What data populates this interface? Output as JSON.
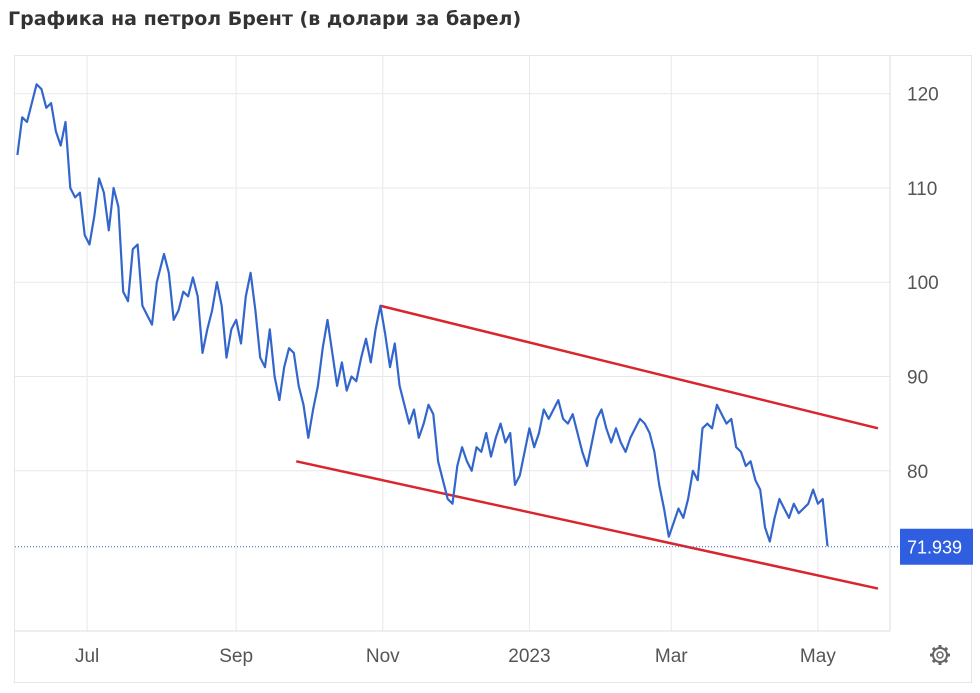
{
  "title": "Графика на петрол Брент (в долари за барел)",
  "colors": {
    "line": "#3366cc",
    "channel": "#d9262e",
    "price_badge": "#2f5fe0",
    "grid": "#e8e8e8",
    "dotted": "#3366cc"
  },
  "icons": {
    "settings": "gear-icon"
  },
  "chart_data": {
    "type": "line",
    "title": "Графика на петрол Брент (в долари за барел)",
    "xlabel": "",
    "ylabel": "",
    "ylim": [
      63,
      124
    ],
    "x_tick_labels": [
      "Jul",
      "Sep",
      "Nov",
      "2023",
      "Mar",
      "May"
    ],
    "x_ticks": [
      "2022-07-01",
      "2022-09-01",
      "2022-11-01",
      "2023-01-01",
      "2023-03-01",
      "2023-05-01"
    ],
    "y_ticks": [
      80,
      90,
      100,
      110,
      120
    ],
    "grid": true,
    "current_price": 71.939,
    "current_price_label": "71.939",
    "series": [
      {
        "values": [
          [
            "2022-06-02",
            113.5
          ],
          [
            "2022-06-04",
            117.5
          ],
          [
            "2022-06-06",
            117.0
          ],
          [
            "2022-06-08",
            119.0
          ],
          [
            "2022-06-10",
            121.0
          ],
          [
            "2022-06-12",
            120.5
          ],
          [
            "2022-06-14",
            118.5
          ],
          [
            "2022-06-16",
            119.0
          ],
          [
            "2022-06-18",
            116.0
          ],
          [
            "2022-06-20",
            114.5
          ],
          [
            "2022-06-22",
            117.0
          ],
          [
            "2022-06-24",
            110.0
          ],
          [
            "2022-06-26",
            109.0
          ],
          [
            "2022-06-28",
            109.5
          ],
          [
            "2022-06-30",
            105.0
          ],
          [
            "2022-07-02",
            104.0
          ],
          [
            "2022-07-04",
            107.0
          ],
          [
            "2022-07-06",
            111.0
          ],
          [
            "2022-07-08",
            109.5
          ],
          [
            "2022-07-10",
            105.5
          ],
          [
            "2022-07-12",
            110.0
          ],
          [
            "2022-07-14",
            108.0
          ],
          [
            "2022-07-16",
            99.0
          ],
          [
            "2022-07-18",
            98.0
          ],
          [
            "2022-07-20",
            103.5
          ],
          [
            "2022-07-22",
            104.0
          ],
          [
            "2022-07-24",
            97.5
          ],
          [
            "2022-07-26",
            96.5
          ],
          [
            "2022-07-28",
            95.5
          ],
          [
            "2022-07-30",
            100.0
          ],
          [
            "2022-08-02",
            103.0
          ],
          [
            "2022-08-04",
            101.0
          ],
          [
            "2022-08-06",
            96.0
          ],
          [
            "2022-08-08",
            97.0
          ],
          [
            "2022-08-10",
            99.0
          ],
          [
            "2022-08-12",
            98.5
          ],
          [
            "2022-08-14",
            100.5
          ],
          [
            "2022-08-16",
            98.5
          ],
          [
            "2022-08-18",
            92.5
          ],
          [
            "2022-08-20",
            95.0
          ],
          [
            "2022-08-22",
            97.0
          ],
          [
            "2022-08-24",
            100.0
          ],
          [
            "2022-08-26",
            97.5
          ],
          [
            "2022-08-28",
            92.0
          ],
          [
            "2022-08-30",
            95.0
          ],
          [
            "2022-09-01",
            96.0
          ],
          [
            "2022-09-03",
            93.5
          ],
          [
            "2022-09-05",
            98.5
          ],
          [
            "2022-09-07",
            101.0
          ],
          [
            "2022-09-09",
            97.0
          ],
          [
            "2022-09-11",
            92.0
          ],
          [
            "2022-09-13",
            91.0
          ],
          [
            "2022-09-15",
            95.0
          ],
          [
            "2022-09-17",
            90.0
          ],
          [
            "2022-09-19",
            87.5
          ],
          [
            "2022-09-21",
            91.0
          ],
          [
            "2022-09-23",
            93.0
          ],
          [
            "2022-09-25",
            92.5
          ],
          [
            "2022-09-27",
            89.0
          ],
          [
            "2022-09-29",
            87.0
          ],
          [
            "2022-10-01",
            83.5
          ],
          [
            "2022-10-03",
            86.5
          ],
          [
            "2022-10-05",
            89.0
          ],
          [
            "2022-10-07",
            93.0
          ],
          [
            "2022-10-09",
            96.0
          ],
          [
            "2022-10-11",
            92.5
          ],
          [
            "2022-10-13",
            89.0
          ],
          [
            "2022-10-15",
            91.5
          ],
          [
            "2022-10-17",
            88.5
          ],
          [
            "2022-10-19",
            90.0
          ],
          [
            "2022-10-21",
            89.5
          ],
          [
            "2022-10-23",
            92.0
          ],
          [
            "2022-10-25",
            94.0
          ],
          [
            "2022-10-27",
            91.5
          ],
          [
            "2022-10-29",
            95.0
          ],
          [
            "2022-10-31",
            97.5
          ],
          [
            "2022-11-02",
            94.5
          ],
          [
            "2022-11-04",
            91.0
          ],
          [
            "2022-11-06",
            93.5
          ],
          [
            "2022-11-08",
            89.0
          ],
          [
            "2022-11-10",
            87.0
          ],
          [
            "2022-11-12",
            85.0
          ],
          [
            "2022-11-14",
            86.5
          ],
          [
            "2022-11-16",
            83.5
          ],
          [
            "2022-11-18",
            85.0
          ],
          [
            "2022-11-20",
            87.0
          ],
          [
            "2022-11-22",
            86.0
          ],
          [
            "2022-11-24",
            81.0
          ],
          [
            "2022-11-26",
            79.0
          ],
          [
            "2022-11-28",
            77.0
          ],
          [
            "2022-11-30",
            76.5
          ],
          [
            "2022-12-02",
            80.5
          ],
          [
            "2022-12-04",
            82.5
          ],
          [
            "2022-12-06",
            81.0
          ],
          [
            "2022-12-08",
            80.0
          ],
          [
            "2022-12-10",
            82.5
          ],
          [
            "2022-12-12",
            82.0
          ],
          [
            "2022-12-14",
            84.0
          ],
          [
            "2022-12-16",
            81.5
          ],
          [
            "2022-12-18",
            83.5
          ],
          [
            "2022-12-20",
            85.0
          ],
          [
            "2022-12-22",
            83.0
          ],
          [
            "2022-12-24",
            84.0
          ],
          [
            "2022-12-26",
            78.5
          ],
          [
            "2022-12-28",
            79.5
          ],
          [
            "2022-12-30",
            82.0
          ],
          [
            "2023-01-01",
            84.5
          ],
          [
            "2023-01-03",
            82.5
          ],
          [
            "2023-01-05",
            84.0
          ],
          [
            "2023-01-07",
            86.5
          ],
          [
            "2023-01-09",
            85.5
          ],
          [
            "2023-01-11",
            86.5
          ],
          [
            "2023-01-13",
            87.5
          ],
          [
            "2023-01-15",
            85.5
          ],
          [
            "2023-01-17",
            85.0
          ],
          [
            "2023-01-19",
            86.0
          ],
          [
            "2023-01-21",
            84.0
          ],
          [
            "2023-01-23",
            82.0
          ],
          [
            "2023-01-25",
            80.5
          ],
          [
            "2023-01-27",
            83.0
          ],
          [
            "2023-01-29",
            85.5
          ],
          [
            "2023-01-31",
            86.5
          ],
          [
            "2023-02-02",
            84.5
          ],
          [
            "2023-02-04",
            83.0
          ],
          [
            "2023-02-06",
            84.5
          ],
          [
            "2023-02-08",
            83.0
          ],
          [
            "2023-02-10",
            82.0
          ],
          [
            "2023-02-12",
            83.5
          ],
          [
            "2023-02-14",
            84.5
          ],
          [
            "2023-02-16",
            85.5
          ],
          [
            "2023-02-18",
            85.0
          ],
          [
            "2023-02-20",
            84.0
          ],
          [
            "2023-02-22",
            82.0
          ],
          [
            "2023-02-24",
            78.5
          ],
          [
            "2023-02-26",
            76.0
          ],
          [
            "2023-02-28",
            73.0
          ],
          [
            "2023-03-02",
            74.5
          ],
          [
            "2023-03-04",
            76.0
          ],
          [
            "2023-03-06",
            75.0
          ],
          [
            "2023-03-08",
            77.0
          ],
          [
            "2023-03-10",
            80.0
          ],
          [
            "2023-03-12",
            79.0
          ],
          [
            "2023-03-14",
            84.5
          ],
          [
            "2023-03-16",
            85.0
          ],
          [
            "2023-03-18",
            84.5
          ],
          [
            "2023-03-20",
            87.0
          ],
          [
            "2023-03-22",
            86.0
          ],
          [
            "2023-03-24",
            85.0
          ],
          [
            "2023-03-26",
            85.5
          ],
          [
            "2023-03-28",
            82.5
          ],
          [
            "2023-03-30",
            82.0
          ],
          [
            "2023-04-01",
            80.5
          ],
          [
            "2023-04-03",
            81.0
          ],
          [
            "2023-04-05",
            79.0
          ],
          [
            "2023-04-07",
            78.0
          ],
          [
            "2023-04-09",
            74.0
          ],
          [
            "2023-04-11",
            72.5
          ],
          [
            "2023-04-13",
            75.0
          ],
          [
            "2023-04-15",
            77.0
          ],
          [
            "2023-04-17",
            76.0
          ],
          [
            "2023-04-19",
            75.0
          ],
          [
            "2023-04-21",
            76.5
          ],
          [
            "2023-04-23",
            75.5
          ],
          [
            "2023-04-25",
            76.0
          ],
          [
            "2023-04-27",
            76.5
          ],
          [
            "2023-04-29",
            78.0
          ],
          [
            "2023-05-01",
            76.5
          ],
          [
            "2023-05-03",
            77.0
          ],
          [
            "2023-05-05",
            72.0
          ]
        ]
      }
    ],
    "channel_lines": [
      {
        "name": "upper",
        "from": [
          "2022-10-31",
          97.5
        ],
        "to": [
          "2023-05-26",
          84.5
        ]
      },
      {
        "name": "lower",
        "from": [
          "2022-09-26",
          81.0
        ],
        "to": [
          "2023-05-26",
          67.5
        ]
      }
    ]
  }
}
